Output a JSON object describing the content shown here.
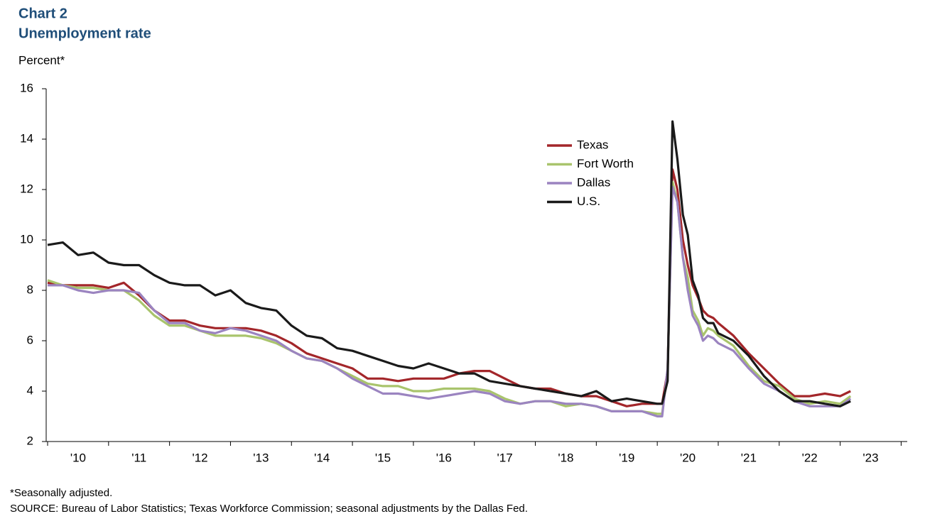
{
  "chart_data": {
    "type": "line",
    "title": "Chart 2",
    "subtitle": "Unemployment rate",
    "y_label": "Percent*",
    "footnote": "*Seasonally adjusted.",
    "source": "SOURCE: Bureau of Labor Statistics; Texas Workforce Commission; seasonal adjustments by the Dallas Fed.",
    "x": [
      2010,
      2010.25,
      2010.5,
      2010.75,
      2011,
      2011.25,
      2011.5,
      2011.75,
      2012,
      2012.25,
      2012.5,
      2012.75,
      2013,
      2013.25,
      2013.5,
      2013.75,
      2014,
      2014.25,
      2014.5,
      2014.75,
      2015,
      2015.25,
      2015.5,
      2015.75,
      2016,
      2016.25,
      2016.5,
      2016.75,
      2017,
      2017.25,
      2017.5,
      2017.75,
      2018,
      2018.25,
      2018.5,
      2018.75,
      2019,
      2019.25,
      2019.5,
      2019.75,
      2020,
      2020.08,
      2020.17,
      2020.25,
      2020.33,
      2020.42,
      2020.5,
      2020.58,
      2020.67,
      2020.75,
      2020.83,
      2020.92,
      2021,
      2021.25,
      2021.5,
      2021.75,
      2022,
      2022.25,
      2022.5,
      2022.75,
      2023,
      2023.17
    ],
    "series": [
      {
        "name": "Texas",
        "color": "#a3262a",
        "values": [
          8.3,
          8.2,
          8.2,
          8.2,
          8.1,
          8.3,
          7.8,
          7.2,
          6.8,
          6.8,
          6.6,
          6.5,
          6.5,
          6.5,
          6.4,
          6.2,
          5.9,
          5.5,
          5.3,
          5.1,
          4.9,
          4.5,
          4.5,
          4.4,
          4.5,
          4.5,
          4.5,
          4.7,
          4.8,
          4.8,
          4.5,
          4.2,
          4.1,
          4.1,
          3.9,
          3.8,
          3.8,
          3.6,
          3.4,
          3.5,
          3.5,
          3.5,
          4.8,
          12.8,
          12.0,
          10.0,
          9.0,
          8.2,
          7.7,
          7.2,
          7.0,
          6.9,
          6.7,
          6.2,
          5.5,
          4.9,
          4.3,
          3.8,
          3.8,
          3.9,
          3.8,
          4.0
        ]
      },
      {
        "name": "Fort Worth",
        "color": "#a9c46c",
        "values": [
          8.4,
          8.2,
          8.1,
          8.1,
          8.0,
          8.0,
          7.6,
          7.0,
          6.6,
          6.6,
          6.4,
          6.2,
          6.2,
          6.2,
          6.1,
          5.9,
          5.6,
          5.3,
          5.2,
          4.9,
          4.6,
          4.3,
          4.2,
          4.2,
          4.0,
          4.0,
          4.1,
          4.1,
          4.1,
          4.0,
          3.7,
          3.5,
          3.6,
          3.6,
          3.4,
          3.5,
          3.4,
          3.2,
          3.2,
          3.2,
          3.1,
          3.1,
          4.8,
          12.3,
          11.5,
          9.3,
          8.5,
          7.2,
          6.8,
          6.2,
          6.5,
          6.4,
          6.2,
          5.8,
          5.0,
          4.4,
          4.2,
          3.7,
          3.5,
          3.6,
          3.5,
          3.8
        ]
      },
      {
        "name": "Dallas",
        "color": "#9b84c0",
        "values": [
          8.2,
          8.2,
          8.0,
          7.9,
          8.0,
          8.0,
          7.9,
          7.2,
          6.7,
          6.7,
          6.4,
          6.3,
          6.5,
          6.4,
          6.2,
          6.0,
          5.6,
          5.3,
          5.2,
          4.9,
          4.5,
          4.2,
          3.9,
          3.9,
          3.8,
          3.7,
          3.8,
          3.9,
          4.0,
          3.9,
          3.6,
          3.5,
          3.6,
          3.6,
          3.5,
          3.5,
          3.4,
          3.2,
          3.2,
          3.2,
          3.0,
          3.0,
          4.9,
          12.1,
          11.5,
          9.3,
          8.0,
          7.0,
          6.6,
          6.0,
          6.2,
          6.1,
          5.9,
          5.6,
          4.9,
          4.3,
          4.0,
          3.6,
          3.4,
          3.4,
          3.4,
          3.7
        ]
      },
      {
        "name": "U.S.",
        "color": "#1a1a1a",
        "values": [
          9.8,
          9.9,
          9.4,
          9.5,
          9.1,
          9.0,
          9.0,
          8.6,
          8.3,
          8.2,
          8.2,
          7.8,
          8.0,
          7.5,
          7.3,
          7.2,
          6.6,
          6.2,
          6.1,
          5.7,
          5.6,
          5.4,
          5.2,
          5.0,
          4.9,
          5.1,
          4.9,
          4.7,
          4.7,
          4.4,
          4.3,
          4.2,
          4.1,
          4.0,
          3.9,
          3.8,
          4.0,
          3.6,
          3.7,
          3.6,
          3.5,
          3.5,
          4.4,
          14.7,
          13.2,
          11.0,
          10.2,
          8.4,
          7.8,
          6.9,
          6.7,
          6.7,
          6.3,
          6.0,
          5.4,
          4.6,
          4.0,
          3.6,
          3.6,
          3.5,
          3.4,
          3.6
        ]
      }
    ],
    "xlim": [
      2010,
      2024.1
    ],
    "xticks": [
      {
        "value": 2010.5,
        "label": "'10"
      },
      {
        "value": 2011.5,
        "label": "'11"
      },
      {
        "value": 2012.5,
        "label": "'12"
      },
      {
        "value": 2013.5,
        "label": "'13"
      },
      {
        "value": 2014.5,
        "label": "'14"
      },
      {
        "value": 2015.5,
        "label": "'15"
      },
      {
        "value": 2016.5,
        "label": "'16"
      },
      {
        "value": 2017.5,
        "label": "'17"
      },
      {
        "value": 2018.5,
        "label": "'18"
      },
      {
        "value": 2019.5,
        "label": "'19"
      },
      {
        "value": 2020.5,
        "label": "'20"
      },
      {
        "value": 2021.5,
        "label": "'21"
      },
      {
        "value": 2022.5,
        "label": "'22"
      },
      {
        "value": 2023.5,
        "label": "'23"
      }
    ],
    "ylim": [
      2,
      16
    ],
    "yticks": [
      2,
      4,
      6,
      8,
      10,
      12,
      14,
      16
    ],
    "grid": false
  }
}
